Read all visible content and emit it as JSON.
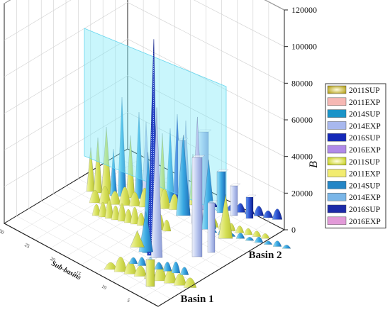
{
  "chart_data": {
    "type": "bar",
    "view": "3d-waterfall",
    "zlabel": "B",
    "ylabel": "Sub-basins",
    "group_labels": [
      "Basin 1",
      "Basin 2"
    ],
    "zlim": [
      0,
      120000
    ],
    "z_ticks": [
      "0",
      "20000",
      "40000",
      "60000",
      "80000",
      "100000",
      "120000"
    ],
    "y_ticks": [
      "5",
      "10",
      "15",
      "20",
      "25",
      "30"
    ],
    "grid": true,
    "legend_position": "right",
    "legend": [
      {
        "label": "2011SUP",
        "color": "#b5a11a",
        "pattern": "radial"
      },
      {
        "label": "2011EXP",
        "color": "#f6b8b4",
        "pattern": "plain"
      },
      {
        "label": "2014SUP",
        "color": "#1a94c8",
        "pattern": "plain"
      },
      {
        "label": "2014EXP",
        "color": "#a8b8ee",
        "pattern": "plain"
      },
      {
        "label": "2016SUP",
        "color": "#1428b8",
        "pattern": "plain"
      },
      {
        "label": "2016EXP",
        "color": "#b08ae8",
        "pattern": "plain"
      },
      {
        "label": "2011SUP",
        "color": "#c8d21e",
        "pattern": "radial"
      },
      {
        "label": "2011EXP",
        "color": "#f2ec70",
        "pattern": "plain"
      },
      {
        "label": "2014SUP",
        "color": "#2486c6",
        "pattern": "plain"
      },
      {
        "label": "2014EXP",
        "color": "#7ab6e8",
        "pattern": "plain"
      },
      {
        "label": "2016SUP",
        "color": "#1c2aa8",
        "pattern": "plain"
      },
      {
        "label": "2016EXP",
        "color": "#e29ad8",
        "pattern": "plain"
      }
    ],
    "series_colors": [
      "#dfe88a",
      "#f2ec70",
      "#56b8e8",
      "#9cc8ec",
      "#2a5ad8",
      "#c0d0f4"
    ],
    "peaks": [
      {
        "group": 1,
        "position": 8,
        "series": 2,
        "value": 55000
      },
      {
        "group": 1,
        "position": 10,
        "series": 4,
        "value": 118000
      },
      {
        "group": 1,
        "position": 12,
        "series": 3,
        "value": 82000
      },
      {
        "group": 1,
        "position": 7,
        "series": 2,
        "value": 22000
      },
      {
        "group": 1,
        "position": 3,
        "series": 0,
        "value": 9000
      },
      {
        "group": 2,
        "position": 12,
        "series": 2,
        "value": 44000
      },
      {
        "group": 2,
        "position": 17,
        "series": 3,
        "value": 58000
      },
      {
        "group": 2,
        "position": 21,
        "series": 2,
        "value": 38000
      },
      {
        "group": 2,
        "position": 27,
        "series": 1,
        "value": 24000
      }
    ]
  }
}
